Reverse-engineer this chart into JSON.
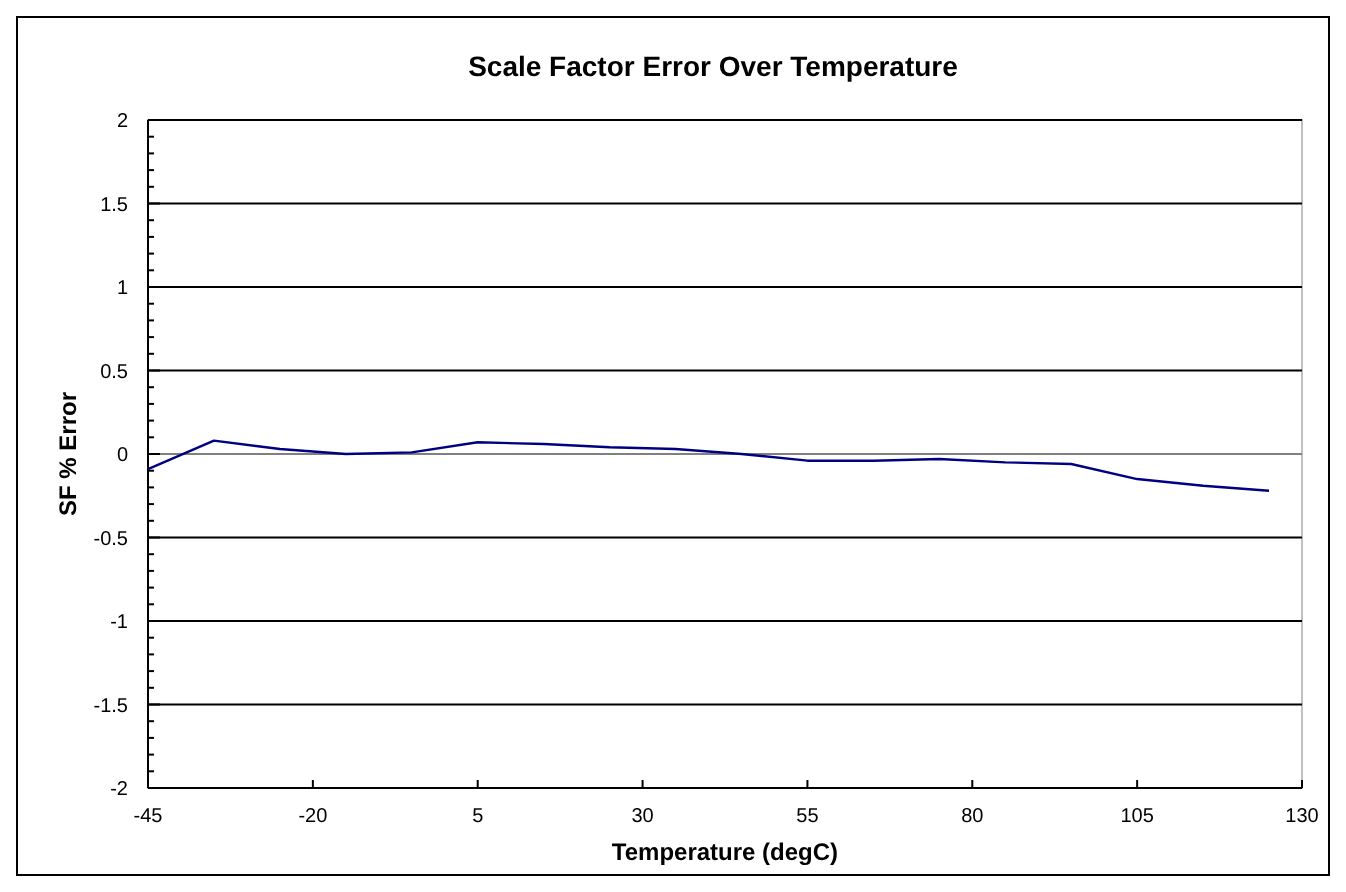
{
  "chart_data": {
    "type": "line",
    "title": "Scale Factor Error Over Temperature",
    "xlabel": "Temperature (degC)",
    "ylabel": "SF % Error",
    "x": [
      -45,
      -35,
      -25,
      -15,
      -5,
      5,
      15,
      25,
      35,
      45,
      55,
      65,
      75,
      85,
      95,
      105,
      115,
      125
    ],
    "series": [
      {
        "color": "#000080",
        "values": [
          -0.09,
          0.08,
          0.03,
          0,
          0.01,
          0.07,
          0.06,
          0.04,
          0.03,
          0,
          -0.04,
          -0.04,
          -0.03,
          -0.05,
          -0.06,
          -0.15,
          -0.19,
          -0.22
        ]
      }
    ],
    "xlim": [
      -45,
      130
    ],
    "xticks": [
      -45,
      -20,
      5,
      30,
      55,
      80,
      105,
      130
    ],
    "ylim": [
      -2,
      2
    ],
    "yticks": [
      -2,
      -1.5,
      -1,
      -0.5,
      0,
      0.5,
      1,
      1.5,
      2
    ],
    "grid": "y",
    "marker": "none",
    "line_style": "solid"
  }
}
